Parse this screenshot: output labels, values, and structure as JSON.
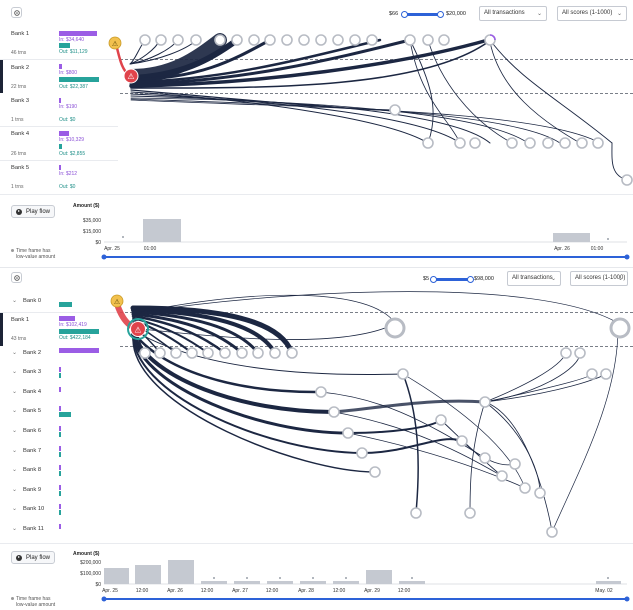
{
  "top": {
    "amount_min": "$66",
    "amount_max": "$20,000",
    "range_fraction": [
      0.05,
      0.98
    ],
    "transaction_filter": "All transactions",
    "score_filter": "All scores (1-1000)",
    "banks": [
      {
        "name": "Bank 1",
        "trns": "46 trns",
        "in": "In: $34,640",
        "out": "Out: $11,129",
        "in_frac": 0.95,
        "out_frac": 0.28
      },
      {
        "name": "Bank 2",
        "trns": "22 trns",
        "in": "In: $800",
        "out": "Out: $22,387",
        "in_frac": 0.08,
        "out_frac": 1.0,
        "selected": true
      },
      {
        "name": "Bank 3",
        "trns": "1 trns",
        "in": "In: $190",
        "out": "Out: $0",
        "in_frac": 0.02,
        "out_frac": 0
      },
      {
        "name": "Bank 4",
        "trns": "26 trns",
        "in": "In: $10,329",
        "out": "Out: $2,855",
        "in_frac": 0.25,
        "out_frac": 0.07
      },
      {
        "name": "Bank 5",
        "trns": "1 trns",
        "in": "In: $212",
        "out": "Out: $0",
        "in_frac": 0.02,
        "out_frac": 0
      }
    ],
    "play_label": "Play flow",
    "note_line1": "Time frame has",
    "note_line2": "low-value amount",
    "chart": {
      "title": "Amount ($)",
      "y_ticks": [
        "$35,000",
        "$15,000",
        "$0"
      ],
      "x_labels": [
        "Apr. 25",
        "01:00",
        "Apr. 26",
        "01:00"
      ]
    }
  },
  "bottom": {
    "amount_min": "$5",
    "amount_max": "$98,000",
    "range_fraction": [
      0.0,
      1.0
    ],
    "transaction_filter": "All transactions",
    "score_filter": "All scores (1-1000)",
    "banks": [
      {
        "name": "Bank 0",
        "out_frac": 0.33,
        "in_frac": 0
      },
      {
        "name": "Bank 1",
        "trns": "43 trns",
        "in": "In: $102,419",
        "out": "Out: $422,184",
        "in_frac": 0.4,
        "out_frac": 1.0,
        "selected": true
      },
      {
        "name": "Bank 2",
        "in_frac": 1.0,
        "out_frac": 0
      },
      {
        "name": "Bank 3",
        "in_frac": 0.06,
        "out_frac": 0.02
      },
      {
        "name": "Bank 4",
        "in_frac": 0.04,
        "out_frac": 0
      },
      {
        "name": "Bank 5",
        "in_frac": 0.05,
        "out_frac": 0.3
      },
      {
        "name": "Bank 6",
        "in_frac": 0.06,
        "out_frac": 0.02
      },
      {
        "name": "Bank 7",
        "in_frac": 0.05,
        "out_frac": 0.04
      },
      {
        "name": "Bank 8",
        "in_frac": 0.06,
        "out_frac": 0.02
      },
      {
        "name": "Bank 9",
        "in_frac": 0.06,
        "out_frac": 0.04
      },
      {
        "name": "Bank 10",
        "in_frac": 0.04,
        "out_frac": 0.02
      },
      {
        "name": "Bank 11",
        "in_frac": 0.02,
        "out_frac": 0
      }
    ],
    "play_label": "Play flow",
    "note_line1": "Time frame has",
    "note_line2": "low-value amount",
    "chart": {
      "title": "Amount ($)",
      "y_ticks": [
        "$200,000",
        "$100,000",
        "$0"
      ],
      "x_labels": [
        "Apr. 25",
        "12:00",
        "Apr. 26",
        "12:00",
        "Apr. 27",
        "12:00",
        "Apr. 28",
        "12:00",
        "Apr. 29",
        "12:00",
        "May. 02"
      ]
    }
  },
  "colors": {
    "accent": "#2d62d8",
    "flow": "#1c2742",
    "in_bar": "#9b5de5",
    "out_bar": "#27a39b",
    "alert": "#e0434b",
    "warning": "#f2c14e"
  },
  "icons": [
    "settings-icon",
    "chevron-down-icon",
    "play-icon",
    "warning-icon",
    "alert-icon"
  ]
}
